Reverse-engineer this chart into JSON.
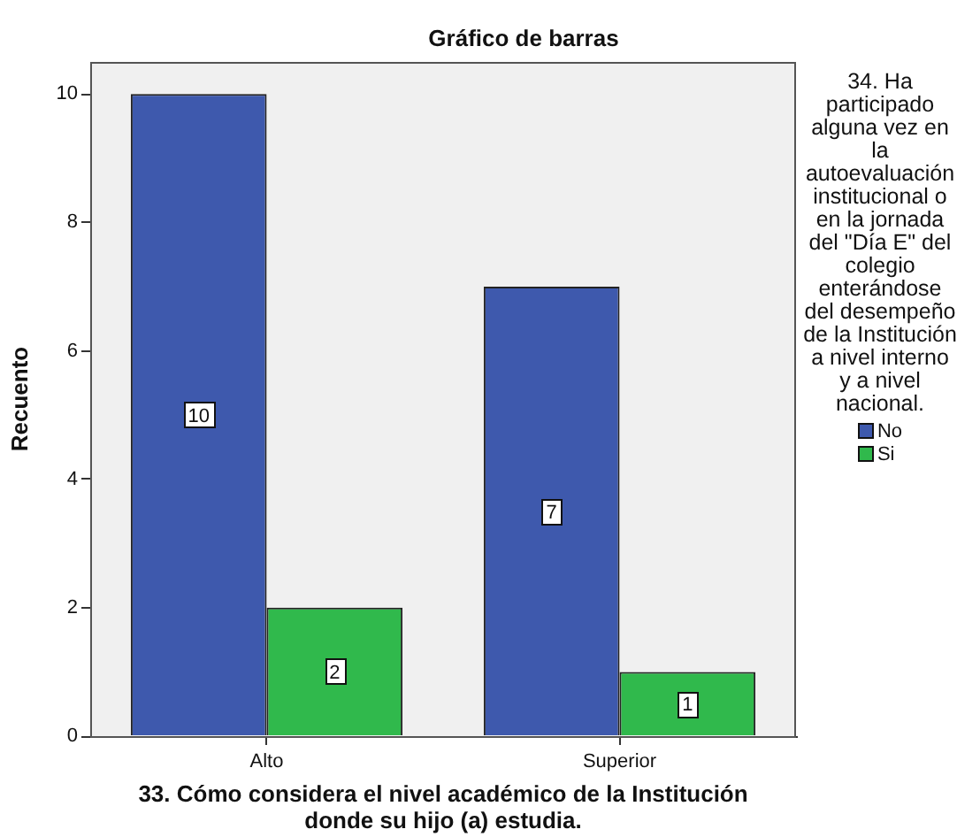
{
  "chart_data": {
    "type": "bar",
    "title": "Gráfico de barras",
    "xlabel": "33. Cómo considera el nivel académico de la Institución donde su hijo (a) estudia.",
    "ylabel": "Recuento",
    "legend_title": "34. Ha participado alguna vez en la autoevaluación institucional o en la jornada del \"Día E\" del colegio enterándose del desempeño de la Institución a nivel interno y a nivel nacional.",
    "categories": [
      "Alto",
      "Superior"
    ],
    "series": [
      {
        "name": "No",
        "color": "#3e59ad",
        "values": [
          10,
          7
        ]
      },
      {
        "name": "Si",
        "color": "#30b94c",
        "values": [
          2,
          1
        ]
      }
    ],
    "ylim": [
      0,
      10.5
    ],
    "yticks": [
      0,
      2,
      4,
      6,
      8,
      10
    ],
    "legend": "right",
    "data_labels": true
  }
}
